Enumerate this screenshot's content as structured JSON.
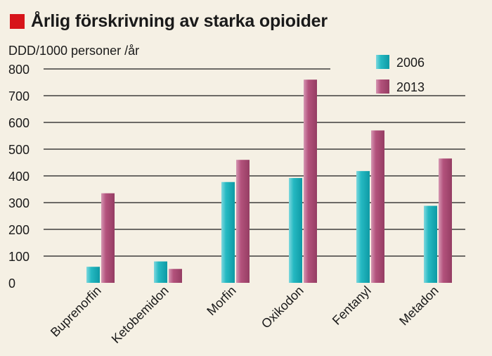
{
  "chart_data": {
    "type": "bar",
    "title": "Årlig förskrivning av starka opioider",
    "ylabel": "DDD/1000 personer /år",
    "xlabel": "",
    "categories": [
      "Buprenorfin",
      "Ketobemidon",
      "Morfin",
      "Oxikodon",
      "Fentanyl",
      "Metadon"
    ],
    "series": [
      {
        "name": "2006",
        "values": [
          60,
          80,
          377,
          392,
          418,
          288
        ]
      },
      {
        "name": "2013",
        "values": [
          335,
          52,
          460,
          760,
          570,
          465
        ]
      }
    ],
    "ylim": [
      0,
      800
    ],
    "yticks": [
      0,
      100,
      200,
      300,
      400,
      500,
      600,
      700,
      800
    ],
    "grid": true,
    "legend": "top-right"
  },
  "colors": {
    "title_square": "#d7141a",
    "series_2006": "#1fb3bd",
    "series_2013": "#b04f78",
    "grid": "#1a1a1a",
    "background": "#f5f0e4"
  }
}
